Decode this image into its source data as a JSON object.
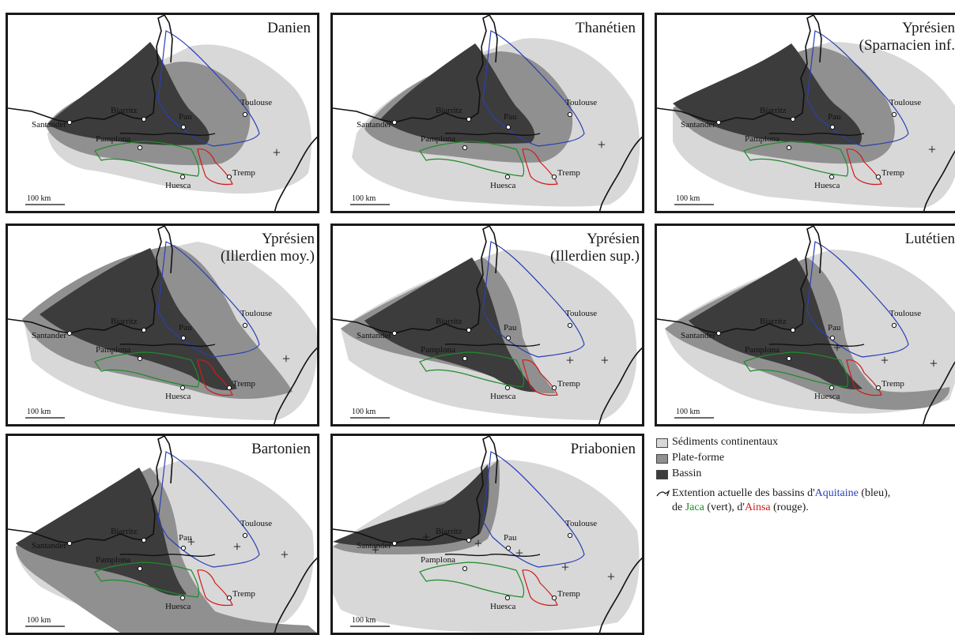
{
  "colors": {
    "continental": "#d8d8d8",
    "platform": "#909090",
    "basin": "#3c3c3c",
    "aquitaine": "#2a3fb5",
    "jaca": "#1e8a2a",
    "ainsa": "#d21a1a"
  },
  "cities": [
    "Santander",
    "Biarritz",
    "Pau",
    "Toulouse",
    "Pamplona",
    "Huesca",
    "Tremp"
  ],
  "scale_label": "100 km",
  "panels": [
    {
      "title": "Danien"
    },
    {
      "title": "Thanétien"
    },
    {
      "title": "Yprésien\n(Sparnacien inf."
    },
    {
      "title": "Yprésien\n(Illerdien moy.)"
    },
    {
      "title": "Yprésien\n(Illerdien sup.)"
    },
    {
      "title": "Lutétien"
    },
    {
      "title": "Bartonien"
    },
    {
      "title": "Priabonien"
    }
  ],
  "legend": {
    "continental": "Sédiments continentaux",
    "platform": "Plate-forme",
    "basin": "Bassin",
    "outline_a": "Extention actuelle des bassins d'",
    "aquitaine": "Aquitaine",
    "outline_b": " (bleu),",
    "outline_c": "de ",
    "jaca": "Jaca",
    "outline_d": " (vert), d'",
    "ainsa": "Ainsa",
    "outline_e": " (rouge)."
  }
}
